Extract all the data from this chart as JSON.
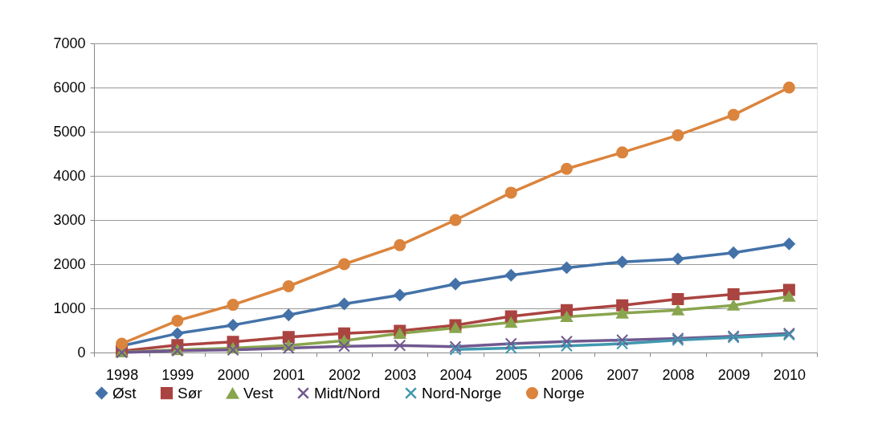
{
  "chart_data": {
    "type": "line",
    "categories": [
      "1998",
      "1999",
      "2000",
      "2001",
      "2002",
      "2003",
      "2004",
      "2005",
      "2006",
      "2007",
      "2008",
      "2009",
      "2010"
    ],
    "series": [
      {
        "name": "Øst",
        "color": "#4472a8",
        "marker": "diamond",
        "values": [
          150,
          430,
          620,
          850,
          1100,
          1300,
          1550,
          1750,
          1920,
          2050,
          2120,
          2260,
          2460
        ]
      },
      {
        "name": "Sør",
        "color": "#aa4441",
        "marker": "square",
        "values": [
          30,
          170,
          240,
          350,
          430,
          490,
          620,
          820,
          960,
          1070,
          1210,
          1320,
          1420
        ]
      },
      {
        "name": "Vest",
        "color": "#89a54e",
        "marker": "triangle",
        "values": [
          10,
          60,
          100,
          160,
          270,
          430,
          560,
          680,
          810,
          890,
          960,
          1070,
          1270
        ]
      },
      {
        "name": "Midt/Nord",
        "color": "#71588f",
        "marker": "cross",
        "values": [
          0,
          40,
          60,
          100,
          140,
          160,
          130,
          200,
          250,
          280,
          320,
          370,
          430
        ]
      },
      {
        "name": "Nord-Norge",
        "color": "#4198af",
        "marker": "cross",
        "values": [
          null,
          null,
          null,
          null,
          null,
          null,
          70,
          100,
          150,
          200,
          280,
          340,
          400
        ]
      },
      {
        "name": "Norge",
        "color": "#db843d",
        "marker": "circle",
        "values": [
          200,
          720,
          1080,
          1500,
          2000,
          2430,
          3000,
          3620,
          4160,
          4530,
          4920,
          5380,
          6000
        ]
      }
    ],
    "ylim": [
      0,
      7000
    ],
    "yticks": [
      0,
      1000,
      2000,
      3000,
      4000,
      5000,
      6000,
      7000
    ],
    "grid": "y",
    "legend": "bottom",
    "line_style": "solid"
  }
}
